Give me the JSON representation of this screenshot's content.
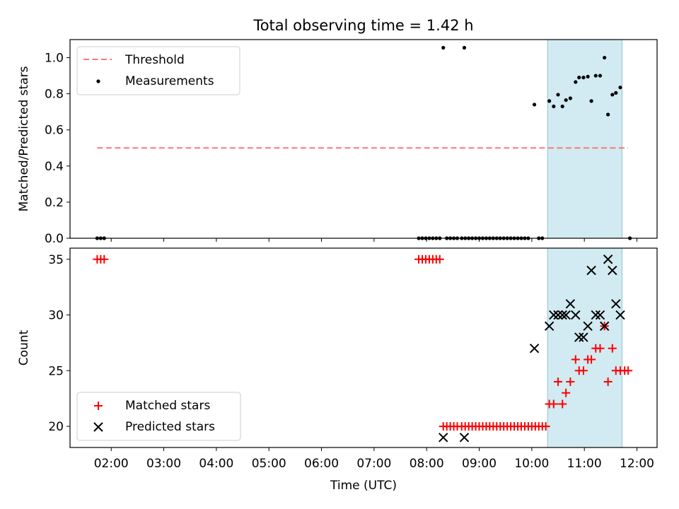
{
  "title": "Total observing time = 1.42 h",
  "colors": {
    "threshold": "#ff7777",
    "measurement": "#000000",
    "matched": "#ff0000",
    "predicted": "#000000",
    "shade": "#add8e6"
  },
  "chart_data": [
    {
      "type": "scatter",
      "ylabel": "Matched/Predicted stars",
      "xlim": [
        "01:13",
        "12:23"
      ],
      "ylim": [
        0,
        1.1
      ],
      "yticks": [
        "0.0",
        "0.2",
        "0.4",
        "0.6",
        "0.8",
        "1.0"
      ],
      "grid": false,
      "legend_position": "top-left",
      "shaded_interval": [
        "10:18",
        "11:43"
      ],
      "threshold": {
        "name": "Threshold",
        "style": "dashed",
        "y": 0.5,
        "x": [
          "01:44",
          "11:50"
        ]
      },
      "series": [
        {
          "name": "Measurements",
          "marker": "dot",
          "x": [
            "01:44",
            "01:48",
            "01:52",
            "07:51",
            "07:55",
            "07:59",
            "08:03",
            "08:07",
            "08:11",
            "08:15",
            "08:23",
            "08:27",
            "08:31",
            "08:35",
            "08:40",
            "08:44",
            "08:48",
            "08:52",
            "08:56",
            "09:00",
            "09:04",
            "09:08",
            "09:12",
            "09:16",
            "09:20",
            "09:24",
            "09:28",
            "09:32",
            "09:36",
            "09:40",
            "09:44",
            "09:48",
            "09:52",
            "09:56",
            "10:08",
            "10:12",
            "11:52",
            "08:19",
            "08:43",
            "10:03",
            "10:20",
            "10:25",
            "10:30",
            "10:35",
            "10:39",
            "10:44",
            "10:50",
            "10:54",
            "10:59",
            "11:04",
            "11:08",
            "11:13",
            "11:18",
            "11:23",
            "11:27",
            "11:32",
            "11:36",
            "11:41"
          ],
          "y": [
            0,
            0,
            0,
            0,
            0,
            0,
            0,
            0,
            0,
            0,
            0,
            0,
            0,
            0,
            0,
            0,
            0,
            0,
            0,
            0,
            0,
            0,
            0,
            0,
            0,
            0,
            0,
            0,
            0,
            0,
            0,
            0,
            0,
            0,
            0,
            0,
            0,
            1.055,
            1.055,
            0.74,
            0.76,
            0.73,
            0.795,
            0.73,
            0.765,
            0.775,
            0.865,
            0.89,
            0.89,
            0.895,
            0.76,
            0.9,
            0.9,
            1.0,
            0.685,
            0.795,
            0.805,
            0.835
          ]
        }
      ]
    },
    {
      "type": "scatter",
      "ylabel": "Count",
      "xlabel": "Time (UTC)",
      "xlim": [
        "01:13",
        "12:23"
      ],
      "ylim": [
        18.1,
        36.0
      ],
      "yticks": [
        "20",
        "25",
        "30",
        "35"
      ],
      "xticks": [
        "02:00",
        "03:00",
        "04:00",
        "05:00",
        "06:00",
        "07:00",
        "08:00",
        "09:00",
        "10:00",
        "11:00",
        "12:00"
      ],
      "grid": false,
      "legend_position": "bottom-left",
      "shaded_interval": [
        "10:18",
        "11:43"
      ],
      "series": [
        {
          "name": "Matched stars",
          "marker": "plus",
          "x": [
            "01:44",
            "01:48",
            "01:52",
            "07:51",
            "07:55",
            "07:59",
            "08:03",
            "08:07",
            "08:11",
            "08:15",
            "08:19",
            "08:23",
            "08:27",
            "08:31",
            "08:35",
            "08:40",
            "08:44",
            "08:48",
            "08:52",
            "08:56",
            "09:00",
            "09:04",
            "09:08",
            "09:12",
            "09:16",
            "09:20",
            "09:24",
            "09:28",
            "09:32",
            "09:36",
            "09:40",
            "09:44",
            "09:48",
            "09:52",
            "09:56",
            "10:00",
            "10:04",
            "10:08",
            "10:12",
            "10:16",
            "10:20",
            "10:25",
            "10:30",
            "10:35",
            "10:39",
            "10:44",
            "10:50",
            "10:54",
            "10:59",
            "11:04",
            "11:08",
            "11:13",
            "11:18",
            "11:23",
            "11:27",
            "11:32",
            "11:36",
            "11:41",
            "11:46",
            "11:50"
          ],
          "y": [
            35,
            35,
            35,
            35,
            35,
            35,
            35,
            35,
            35,
            35,
            20,
            20,
            20,
            20,
            20,
            20,
            20,
            20,
            20,
            20,
            20,
            20,
            20,
            20,
            20,
            20,
            20,
            20,
            20,
            20,
            20,
            20,
            20,
            20,
            20,
            20,
            20,
            20,
            20,
            20,
            22,
            22,
            24,
            22,
            23,
            24,
            26,
            25,
            25,
            26,
            26,
            27,
            27,
            29,
            24,
            27,
            25,
            25,
            25,
            25
          ]
        },
        {
          "name": "Predicted stars",
          "marker": "x",
          "x": [
            "08:19",
            "08:43",
            "10:03",
            "10:20",
            "10:25",
            "10:30",
            "10:35",
            "10:39",
            "10:44",
            "10:50",
            "10:54",
            "10:59",
            "11:04",
            "11:08",
            "11:13",
            "11:18",
            "11:23",
            "11:27",
            "11:32",
            "11:36",
            "11:41"
          ],
          "y": [
            19,
            19,
            27,
            29,
            30,
            30,
            30,
            30,
            31,
            30,
            28,
            28,
            29,
            34,
            30,
            30,
            29,
            35,
            34,
            31,
            30
          ]
        }
      ]
    }
  ]
}
